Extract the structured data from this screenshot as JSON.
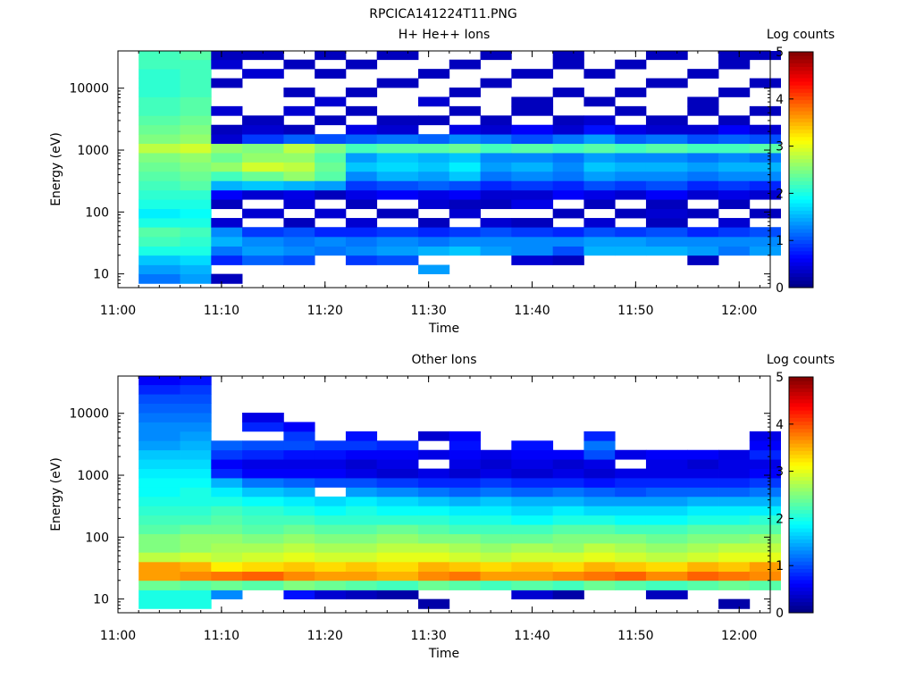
{
  "figure_title": "RPCICA141224T11.PNG",
  "colorbar_ticks": [
    "0",
    "1",
    "2",
    "3",
    "4",
    "5"
  ],
  "chart_data": [
    {
      "type": "heatmap",
      "title": "H+ He++ Ions",
      "xlabel": "Time",
      "ylabel": "Energy (eV)",
      "colorbar_label": "Log counts",
      "colorbar_range": [
        0,
        5
      ],
      "colormap": "jet",
      "x_scale": "linear",
      "y_scale": "log",
      "xlim": [
        "11:00",
        "12:03"
      ],
      "ylim": [
        6,
        40000
      ],
      "x_ticks": [
        "11:00",
        "11:10",
        "11:20",
        "11:30",
        "11:40",
        "11:50",
        "12:00"
      ],
      "y_ticks": [
        "10",
        "100",
        "1000",
        "10000"
      ],
      "time_bins": [
        "11:02",
        "11:06",
        "11:09",
        "11:12",
        "11:16",
        "11:19",
        "11:22",
        "11:25",
        "11:29",
        "11:32",
        "11:35",
        "11:38",
        "11:42",
        "11:45",
        "11:48",
        "11:51",
        "11:55",
        "11:58",
        "12:01"
      ],
      "energy_bins": [
        7,
        10,
        14,
        20,
        28,
        40,
        57,
        80,
        113,
        160,
        226,
        320,
        453,
        640,
        905,
        1280,
        1810,
        2560,
        3620,
        5120,
        7240,
        10240,
        14480,
        20480,
        28960,
        40000
      ],
      "energy_bin_logcounts": [
        [
          1.2,
          1.4,
          1.6,
          2.0,
          2.2,
          2.3,
          2.0,
          1.8,
          2.0,
          2.1,
          2.2,
          2.3,
          2.4,
          2.5,
          2.8,
          2.5,
          2.4,
          2.3,
          2.2,
          2.2,
          2.1,
          2.1,
          2.1,
          2.2,
          2.2
        ],
        [
          1.4,
          1.5,
          1.7,
          2.0,
          2.1,
          2.2,
          2.0,
          1.9,
          2.0,
          2.1,
          2.3,
          2.4,
          2.5,
          2.6,
          2.9,
          2.6,
          2.5,
          2.4,
          2.3,
          2.3,
          2.2,
          2.2,
          2.2,
          2.2,
          2.3
        ],
        [
          0.3,
          null,
          0.8,
          1.2,
          1.5,
          1.3,
          0.4,
          null,
          0.3,
          0.6,
          1.5,
          2.2,
          2.6,
          2.4,
          2.6,
          0.4,
          0.3,
          null,
          0.4,
          null,
          null,
          0.3,
          null,
          0.4,
          0.3
        ],
        [
          null,
          null,
          1.1,
          1.4,
          1.3,
          0.9,
          null,
          0.4,
          null,
          0.4,
          1.6,
          2.4,
          2.9,
          2.6,
          2.5,
          0.9,
          0.4,
          0.3,
          null,
          null,
          null,
          null,
          0.4,
          null,
          0.3
        ],
        [
          null,
          null,
          1.0,
          1.3,
          1.2,
          1.0,
          0.3,
          null,
          0.4,
          0.5,
          1.5,
          2.6,
          2.8,
          2.6,
          2.8,
          1.1,
          0.3,
          null,
          0.4,
          null,
          0.3,
          null,
          null,
          0.3,
          null
        ],
        [
          null,
          null,
          null,
          1.2,
          1.3,
          0.8,
          null,
          0.4,
          null,
          0.3,
          1.4,
          2.3,
          2.4,
          2.3,
          2.5,
          1.0,
          null,
          0.3,
          null,
          0.4,
          null,
          null,
          0.3,
          null,
          0.3
        ],
        [
          null,
          null,
          0.9,
          1.3,
          1.2,
          0.8,
          0.4,
          null,
          0.3,
          0.5,
          0.9,
          1.3,
          1.6,
          1.4,
          2.2,
          1.1,
          0.5,
          null,
          0.3,
          null,
          0.3,
          null,
          null,
          0.3,
          null
        ],
        [
          null,
          null,
          1.0,
          1.4,
          1.3,
          0.9,
          null,
          0.3,
          null,
          0.6,
          1.0,
          1.5,
          1.7,
          1.6,
          2.3,
          1.2,
          0.4,
          0.3,
          null,
          null,
          null,
          0.3,
          null,
          null,
          0.3
        ],
        [
          null,
          1.4,
          null,
          1.5,
          1.2,
          0.8,
          0.3,
          null,
          0.4,
          0.5,
          1.1,
          1.4,
          1.6,
          1.5,
          2.3,
          1.1,
          null,
          0.3,
          null,
          0.4,
          null,
          null,
          0.3,
          null,
          null
        ],
        [
          null,
          null,
          null,
          1.6,
          1.3,
          0.9,
          null,
          0.4,
          0.3,
          0.6,
          1.0,
          1.6,
          1.8,
          1.6,
          2.4,
          1.3,
          0.5,
          null,
          0.3,
          null,
          0.3,
          null,
          null,
          0.3,
          null
        ],
        [
          null,
          null,
          null,
          1.4,
          1.3,
          1.0,
          0.4,
          null,
          0.3,
          0.4,
          0.8,
          1.2,
          1.4,
          1.3,
          2.2,
          1.2,
          0.4,
          0.3,
          null,
          null,
          null,
          0.3,
          null,
          null,
          0.3
        ],
        [
          null,
          null,
          0.4,
          1.3,
          1.3,
          0.9,
          0.3,
          null,
          0.5,
          0.4,
          0.9,
          1.3,
          1.5,
          1.3,
          2.3,
          1.0,
          0.6,
          null,
          0.3,
          0.3,
          null,
          null,
          0.3,
          null,
          null
        ],
        [
          null,
          null,
          0.3,
          1.0,
          1.3,
          0.8,
          null,
          0.3,
          null,
          0.6,
          0.8,
          1.2,
          1.3,
          1.2,
          2.2,
          1.2,
          0.4,
          0.3,
          null,
          null,
          0.3,
          null,
          null,
          0.3,
          0.3
        ],
        [
          null,
          null,
          null,
          1.5,
          1.4,
          1.0,
          0.4,
          null,
          0.3,
          0.5,
          1.0,
          1.4,
          1.6,
          1.4,
          2.3,
          1.4,
          0.7,
          0.4,
          null,
          0.3,
          null,
          null,
          0.3,
          null,
          null
        ],
        [
          null,
          null,
          null,
          1.5,
          1.4,
          0.9,
          null,
          0.3,
          null,
          0.4,
          0.9,
          1.3,
          1.5,
          1.3,
          2.2,
          1.1,
          0.5,
          null,
          0.3,
          null,
          0.3,
          null,
          null,
          0.3,
          null
        ],
        [
          null,
          null,
          null,
          1.5,
          1.3,
          1.0,
          0.3,
          0.4,
          0.3,
          0.6,
          1.0,
          1.3,
          1.5,
          1.3,
          2.3,
          1.2,
          0.4,
          0.3,
          null,
          null,
          null,
          0.3,
          null,
          null,
          0.3
        ],
        [
          null,
          null,
          0.3,
          1.4,
          1.3,
          0.8,
          null,
          0.3,
          null,
          0.4,
          0.8,
          1.2,
          1.4,
          1.2,
          2.2,
          1.0,
          0.4,
          null,
          0.3,
          0.3,
          null,
          null,
          0.3,
          null,
          null
        ],
        [
          null,
          null,
          null,
          1.2,
          1.3,
          0.9,
          0.4,
          null,
          0.3,
          0.5,
          0.9,
          1.3,
          1.5,
          1.3,
          2.2,
          1.1,
          0.6,
          0.3,
          null,
          null,
          0.3,
          null,
          null,
          0.3,
          0.3
        ],
        [
          null,
          null,
          null,
          1.4,
          1.3,
          1.0,
          null,
          0.3,
          null,
          0.4,
          0.8,
          1.3,
          1.5,
          1.2,
          2.3,
          1.0,
          0.4,
          null,
          0.3,
          null,
          null,
          0.3,
          null,
          null,
          0.3
        ]
      ]
    },
    {
      "type": "heatmap",
      "title": "Other Ions",
      "xlabel": "Time",
      "ylabel": "Energy (eV)",
      "colorbar_label": "Log counts",
      "colorbar_range": [
        0,
        5
      ],
      "colormap": "jet",
      "x_scale": "linear",
      "y_scale": "log",
      "xlim": [
        "11:00",
        "12:03"
      ],
      "ylim": [
        6,
        40000
      ],
      "x_ticks": [
        "11:00",
        "11:10",
        "11:20",
        "11:30",
        "11:40",
        "11:50",
        "12:00"
      ],
      "y_ticks": [
        "10",
        "100",
        "1000",
        "10000"
      ],
      "time_bins": [
        "11:02",
        "11:06",
        "11:09",
        "11:12",
        "11:16",
        "11:19",
        "11:22",
        "11:25",
        "11:29",
        "11:32",
        "11:35",
        "11:38",
        "11:42",
        "11:45",
        "11:48",
        "11:51",
        "11:55",
        "11:58",
        "12:01"
      ],
      "energy_bins": [
        7,
        10,
        14,
        20,
        28,
        40,
        57,
        80,
        113,
        160,
        226,
        320,
        453,
        640,
        905,
        1280,
        1810,
        2560,
        3620,
        5120,
        7240,
        10240,
        14480,
        20480,
        28960,
        40000
      ],
      "energy_bin_logcounts": [
        [
          2.0,
          2.0,
          2.4,
          3.6,
          3.6,
          2.8,
          2.5,
          2.5,
          2.3,
          2.2,
          2.1,
          2.0,
          1.9,
          1.9,
          1.8,
          1.7,
          1.6,
          1.4,
          1.3,
          1.3,
          1.2,
          1.1,
          1.0,
          0.8,
          0.6
        ],
        [
          2.0,
          2.0,
          2.3,
          3.7,
          3.5,
          2.9,
          2.6,
          2.6,
          2.4,
          2.2,
          2.1,
          2.0,
          2.0,
          1.9,
          1.8,
          1.7,
          1.6,
          1.5,
          1.4,
          1.3,
          1.2,
          1.1,
          1.0,
          0.9,
          0.7
        ],
        [
          null,
          1.3,
          2.4,
          3.8,
          3.2,
          2.8,
          2.7,
          2.6,
          2.4,
          2.3,
          2.2,
          2.0,
          1.8,
          1.5,
          0.8,
          0.6,
          0.9,
          1.1,
          null,
          null,
          null,
          null,
          null,
          null,
          null
        ],
        [
          null,
          null,
          2.3,
          3.9,
          3.3,
          2.9,
          2.7,
          2.5,
          2.3,
          2.2,
          2.1,
          1.9,
          1.6,
          1.2,
          0.6,
          0.5,
          0.8,
          1.0,
          null,
          0.8,
          0.5,
          null,
          null,
          null,
          null
        ],
        [
          null,
          0.7,
          2.5,
          3.7,
          3.4,
          3.0,
          2.8,
          2.6,
          2.4,
          2.2,
          2.0,
          1.8,
          1.5,
          1.1,
          0.6,
          0.5,
          0.7,
          1.0,
          0.9,
          0.6,
          null,
          null,
          null,
          null,
          null
        ],
        [
          null,
          0.4,
          2.4,
          3.6,
          3.3,
          2.9,
          2.7,
          2.5,
          2.3,
          2.1,
          1.9,
          1.7,
          null,
          1.0,
          0.6,
          0.5,
          0.7,
          0.9,
          null,
          null,
          null,
          null,
          null,
          null,
          null
        ],
        [
          null,
          0.3,
          2.3,
          3.6,
          3.4,
          2.9,
          2.7,
          2.5,
          2.3,
          2.1,
          2.0,
          1.8,
          1.4,
          1.0,
          0.5,
          0.4,
          0.6,
          0.9,
          0.7,
          null,
          null,
          null,
          null,
          null,
          null
        ],
        [
          null,
          0.2,
          2.2,
          3.5,
          3.3,
          3.0,
          2.8,
          2.6,
          2.4,
          2.1,
          1.9,
          1.7,
          1.3,
          0.9,
          0.4,
          0.5,
          0.6,
          0.8,
          null,
          null,
          null,
          null,
          null,
          null,
          null
        ],
        [
          0.2,
          null,
          2.4,
          3.7,
          3.5,
          3.0,
          2.8,
          2.5,
          2.3,
          2.1,
          1.9,
          1.6,
          1.2,
          0.8,
          0.5,
          null,
          0.5,
          null,
          0.4,
          null,
          null,
          null,
          null,
          null,
          null
        ],
        [
          null,
          null,
          2.3,
          3.8,
          3.4,
          2.9,
          2.7,
          2.5,
          2.2,
          2.0,
          1.8,
          1.5,
          1.1,
          0.8,
          0.4,
          0.5,
          0.6,
          0.7,
          0.6,
          null,
          null,
          null,
          null,
          null,
          null
        ],
        [
          null,
          null,
          2.2,
          3.6,
          3.3,
          2.8,
          2.6,
          2.4,
          2.2,
          2.0,
          1.8,
          1.6,
          1.2,
          0.9,
          0.5,
          0.4,
          0.5,
          null,
          null,
          null,
          null,
          null,
          null,
          null,
          null
        ],
        [
          null,
          0.4,
          2.3,
          3.6,
          3.4,
          2.9,
          2.7,
          2.4,
          2.2,
          1.9,
          1.7,
          1.5,
          1.1,
          0.8,
          0.4,
          0.5,
          0.6,
          0.7,
          null,
          null,
          null,
          null,
          null,
          null,
          null
        ],
        [
          null,
          0.2,
          2.2,
          3.7,
          3.3,
          2.9,
          2.6,
          2.5,
          2.3,
          2.0,
          1.8,
          1.5,
          1.2,
          0.8,
          0.5,
          0.4,
          0.6,
          null,
          null,
          null,
          null,
          null,
          null,
          null,
          null
        ],
        [
          null,
          null,
          2.4,
          3.8,
          3.5,
          3.0,
          2.8,
          2.5,
          2.3,
          2.0,
          1.7,
          1.4,
          1.1,
          0.7,
          0.4,
          0.5,
          1.0,
          1.2,
          0.8,
          null,
          null,
          null,
          null,
          null,
          null
        ],
        [
          null,
          null,
          2.3,
          3.9,
          3.4,
          2.9,
          2.7,
          2.5,
          2.2,
          1.9,
          1.7,
          1.4,
          1.0,
          0.8,
          0.5,
          null,
          0.5,
          null,
          null,
          null,
          null,
          null,
          null,
          null,
          null
        ],
        [
          null,
          0.3,
          2.2,
          3.7,
          3.3,
          2.8,
          2.6,
          2.4,
          2.2,
          1.9,
          1.7,
          1.4,
          1.1,
          0.8,
          0.5,
          0.5,
          0.6,
          null,
          null,
          null,
          null,
          null,
          null,
          null,
          null
        ],
        [
          null,
          null,
          2.3,
          3.9,
          3.5,
          2.9,
          2.7,
          2.5,
          2.3,
          2.0,
          1.8,
          1.5,
          1.1,
          0.8,
          0.5,
          0.4,
          0.6,
          null,
          null,
          null,
          null,
          null,
          null,
          null,
          null
        ],
        [
          0.2,
          null,
          2.4,
          3.8,
          3.4,
          3.0,
          2.8,
          2.5,
          2.3,
          2.0,
          1.8,
          1.5,
          1.1,
          0.8,
          0.5,
          0.5,
          0.5,
          null,
          null,
          null,
          null,
          null,
          null,
          null,
          null
        ],
        [
          null,
          null,
          2.3,
          3.7,
          3.6,
          3.0,
          2.8,
          2.6,
          2.3,
          2.1,
          1.8,
          1.5,
          1.2,
          0.9,
          0.6,
          0.5,
          0.8,
          0.6,
          0.5,
          null,
          null,
          null,
          null,
          null,
          null
        ]
      ]
    }
  ]
}
